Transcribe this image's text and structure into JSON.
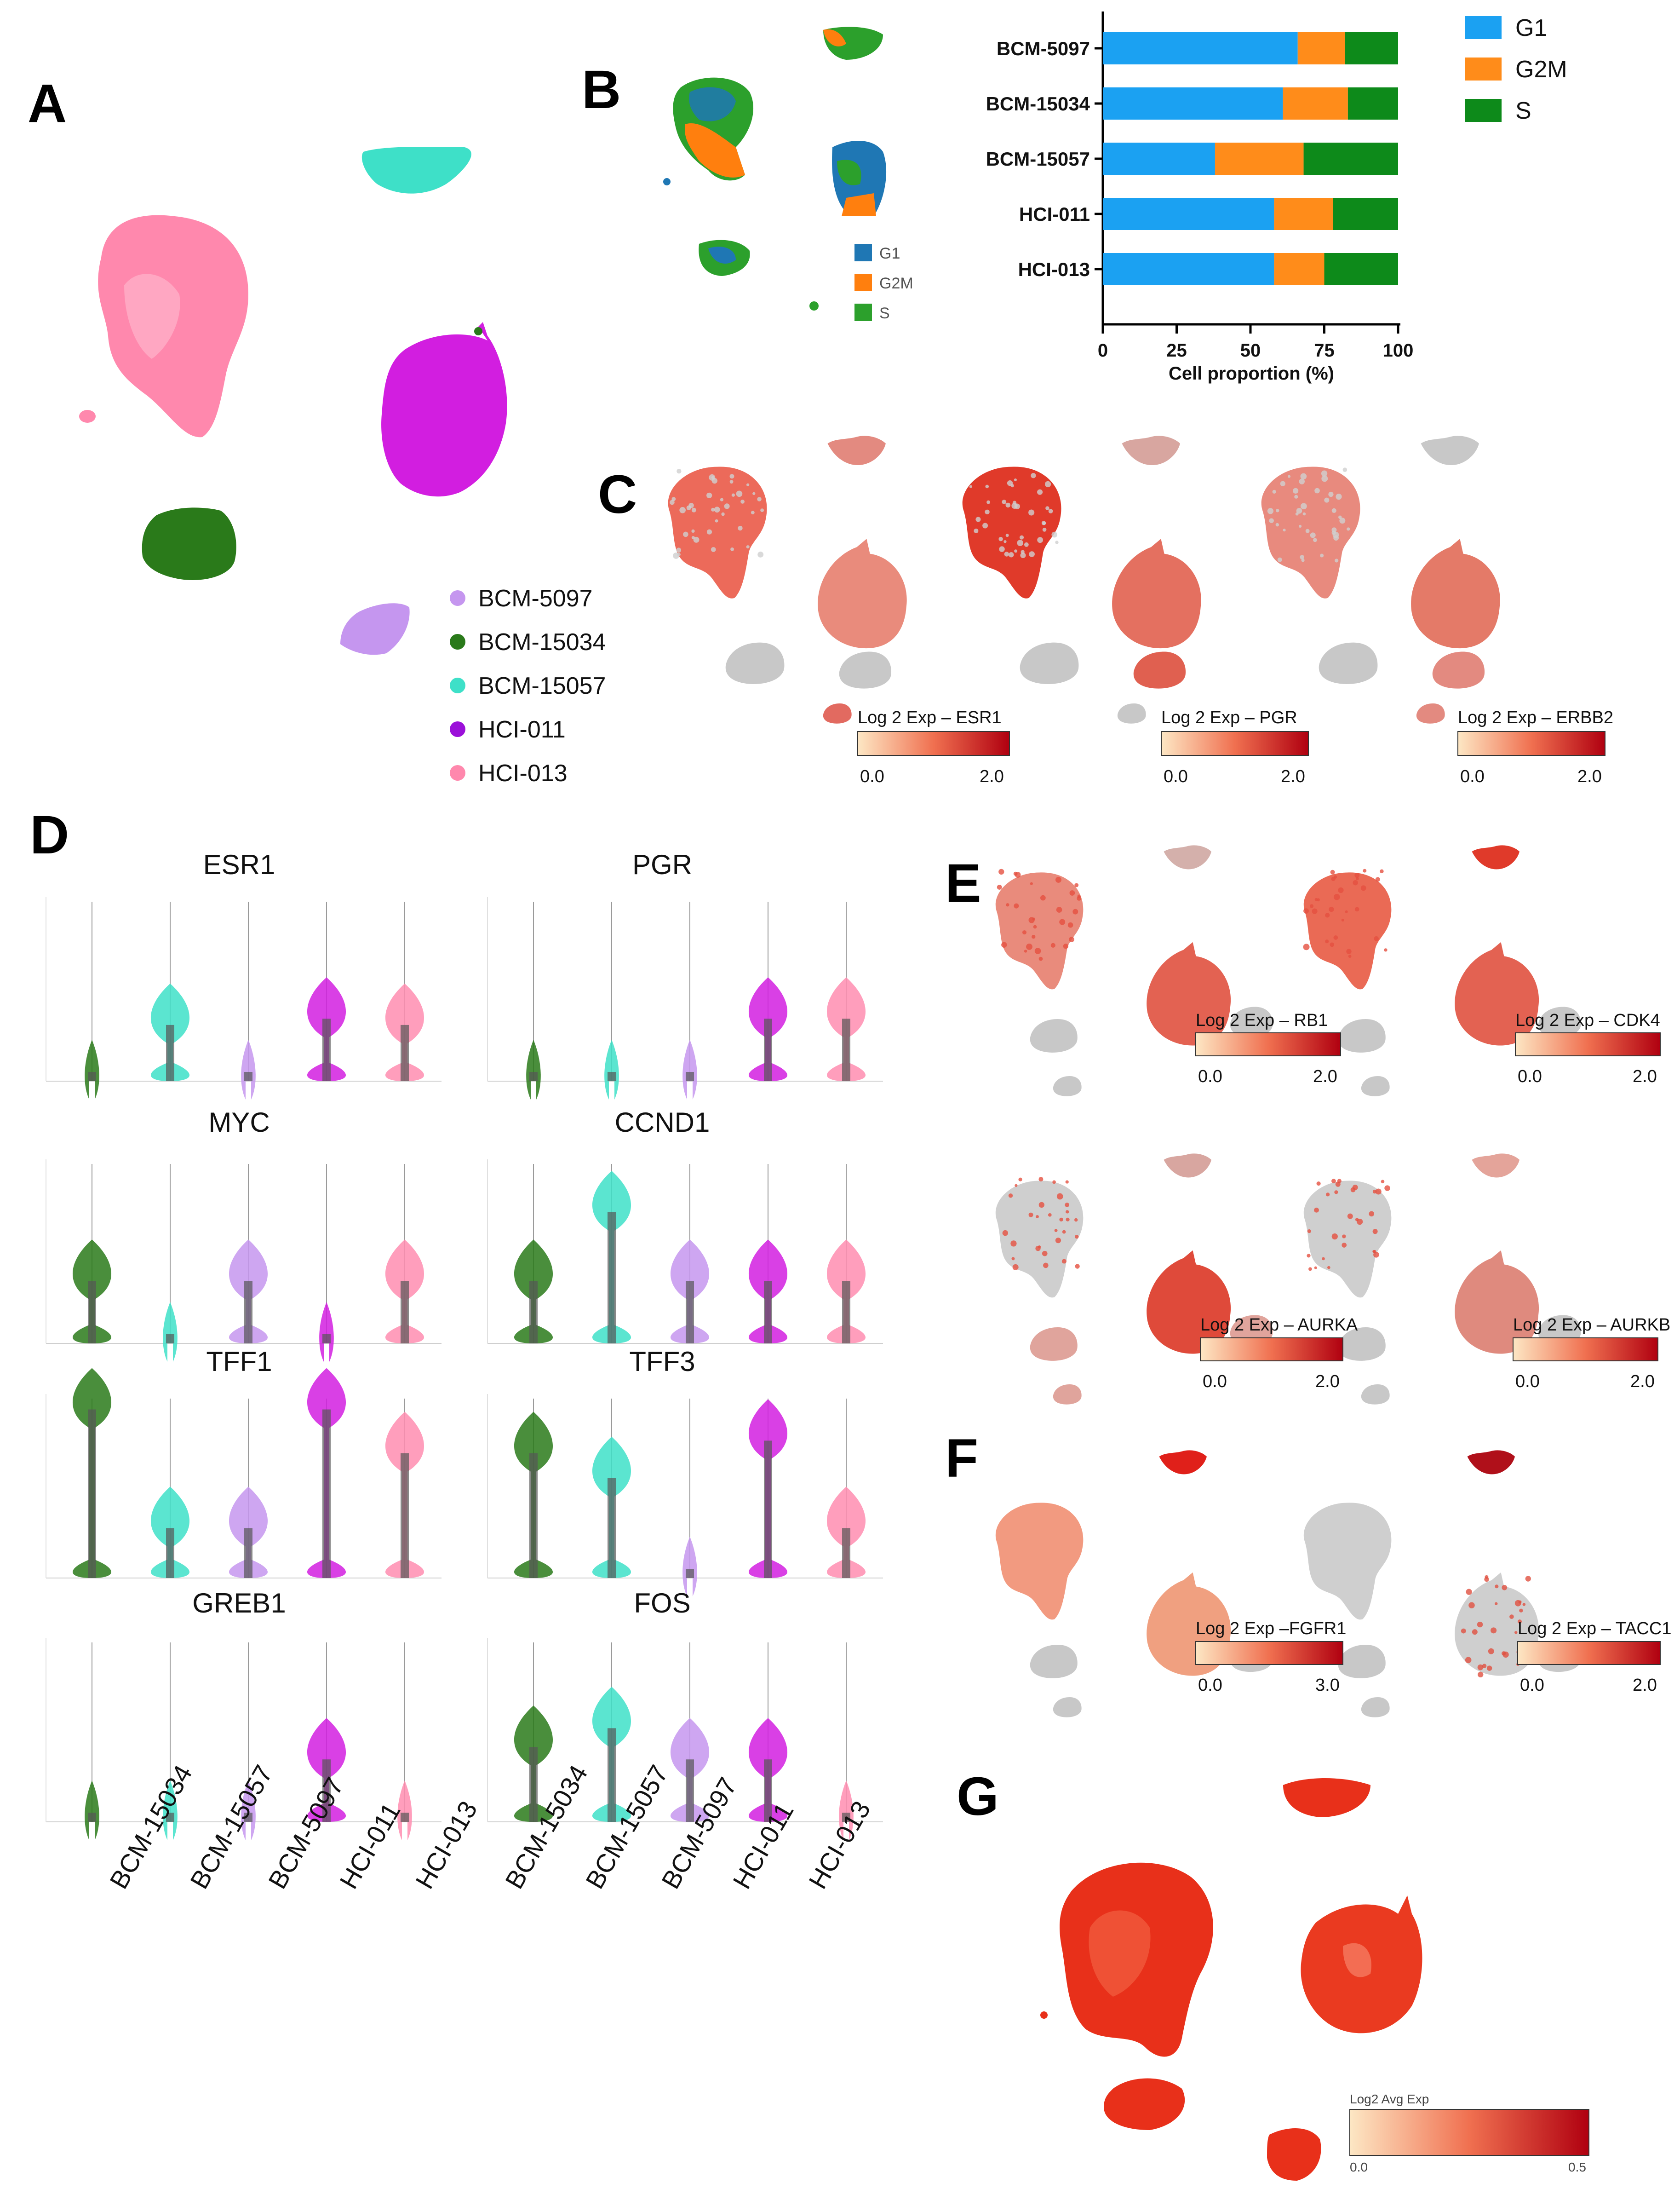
{
  "colors": {
    "BCM-5097": "#c596ef",
    "BCM-15034": "#2a7a1a",
    "BCM-15057": "#3ee0c8",
    "HCI-011": "#d21ee0",
    "HCI-013": "#ff8db0",
    "G1": "#1ba1f2",
    "G2M": "#ff8c1a",
    "S": "#0d8a1a",
    "umap_G1": "#1f77b4",
    "umap_G2M": "#ff7f0e",
    "umap_S": "#2ca02c",
    "grey": "#c8c8c8"
  },
  "panels": {
    "A": "A",
    "B": "B",
    "C": "C",
    "D": "D",
    "E": "E",
    "F": "F",
    "G": "G"
  },
  "panelA": {
    "legend": [
      "BCM-5097",
      "BCM-15034",
      "BCM-15057",
      "HCI-011",
      "HCI-013"
    ]
  },
  "panelB": {
    "umap_legend": [
      "G1",
      "G2M",
      "S"
    ],
    "bar_legend": [
      "G1",
      "G2M",
      "S"
    ]
  },
  "chart_data": [
    {
      "type": "bar",
      "orientation": "horizontal-stacked",
      "categories": [
        "BCM-5097",
        "BCM-15034",
        "BCM-15057",
        "HCI-011",
        "HCI-013"
      ],
      "series": [
        {
          "name": "G1",
          "values": [
            66,
            61,
            38,
            58,
            58
          ]
        },
        {
          "name": "G2M",
          "values": [
            16,
            22,
            30,
            20,
            17
          ]
        },
        {
          "name": "S",
          "values": [
            18,
            17,
            32,
            22,
            25
          ]
        }
      ],
      "xlabel": "Cell proportion (%)",
      "xlim": [
        0,
        100
      ],
      "xticks": [
        "0",
        "25",
        "50",
        "75",
        "100"
      ],
      "title": "",
      "legend": "right"
    },
    {
      "type": "violin",
      "panel": "D",
      "categories": [
        "BCM-15034",
        "BCM-15057",
        "BCM-5097",
        "HCI-011",
        "HCI-013"
      ],
      "genes": [
        {
          "name": "ESR1",
          "median": [
            0.0,
            0.9,
            0.0,
            1.0,
            0.9
          ]
        },
        {
          "name": "PGR",
          "median": [
            0.0,
            0.0,
            0.0,
            1.0,
            1.0
          ]
        },
        {
          "name": "MYC",
          "median": [
            1.0,
            0.0,
            1.0,
            0.0,
            1.0
          ]
        },
        {
          "name": "CCND1",
          "median": [
            1.0,
            2.1,
            1.0,
            1.0,
            1.0
          ]
        },
        {
          "name": "TFF1",
          "median": [
            2.7,
            0.8,
            0.8,
            2.7,
            2.0
          ]
        },
        {
          "name": "TFF3",
          "median": [
            2.0,
            1.6,
            0.0,
            2.2,
            0.8
          ]
        },
        {
          "name": "GREB1",
          "median": [
            0.0,
            0.0,
            0.0,
            1.0,
            0.0
          ]
        },
        {
          "name": "FOS",
          "median": [
            1.2,
            1.5,
            1.0,
            1.0,
            0.0
          ]
        }
      ]
    }
  ],
  "panelC": {
    "scales": [
      {
        "title": "Log 2 Exp – ESR1",
        "min": "0.0",
        "max": "2.0"
      },
      {
        "title": "Log 2 Exp – PGR",
        "min": "0.0",
        "max": "2.0"
      },
      {
        "title": "Log 2 Exp – ERBB2",
        "min": "0.0",
        "max": "2.0"
      }
    ]
  },
  "panelD": {
    "titles": [
      "ESR1",
      "PGR",
      "MYC",
      "CCND1",
      "TFF1",
      "TFF3",
      "GREB1",
      "FOS"
    ],
    "categories": [
      "BCM-15034",
      "BCM-15057",
      "BCM-5097",
      "HCI-011",
      "HCI-013"
    ]
  },
  "panelE": {
    "scales": [
      {
        "title": "Log 2 Exp – RB1",
        "min": "0.0",
        "max": "2.0"
      },
      {
        "title": "Log 2 Exp – CDK4",
        "min": "0.0",
        "max": "2.0"
      },
      {
        "title": "Log 2 Exp – AURKA",
        "min": "0.0",
        "max": "2.0"
      },
      {
        "title": "Log 2 Exp – AURKB",
        "min": "0.0",
        "max": "2.0"
      }
    ]
  },
  "panelF": {
    "scales": [
      {
        "title": "Log 2 Exp –FGFR1",
        "min": "0.0",
        "max": "3.0"
      },
      {
        "title": "Log 2 Exp – TACC1",
        "min": "0.0",
        "max": "2.0"
      }
    ]
  },
  "panelG": {
    "scale": {
      "title": "Log2 Avg Exp",
      "min": "0.0",
      "max": "0.5"
    }
  }
}
